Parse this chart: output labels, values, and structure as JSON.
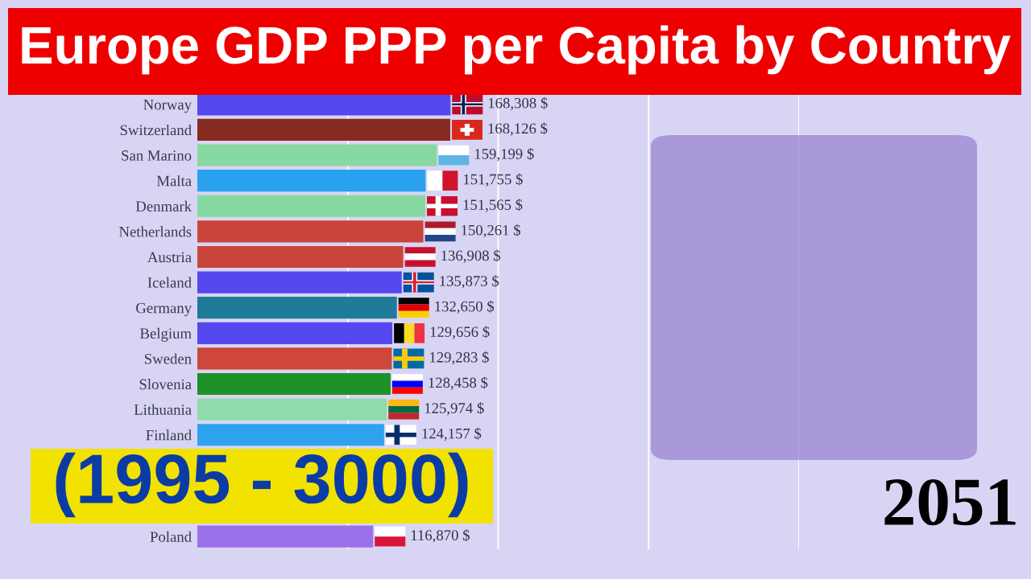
{
  "chart_data": {
    "type": "bar",
    "orientation": "horizontal",
    "title": "Europe GDP PPP per Capita by Country",
    "subtitle": "(1995 - 3000)",
    "annotations": [
      "2051"
    ],
    "categories": [
      "Norway",
      "Switzerland",
      "San Marino",
      "Malta",
      "Denmark",
      "Netherlands",
      "Austria",
      "Iceland",
      "Germany",
      "Belgium",
      "Sweden",
      "Slovenia",
      "Lithuania",
      "Finland",
      null,
      null,
      null,
      "Poland"
    ],
    "values": [
      168308,
      168126,
      159199,
      151755,
      151565,
      150261,
      136908,
      135873,
      132650,
      129656,
      129283,
      128458,
      125974,
      124157,
      null,
      null,
      null,
      116870
    ],
    "colors": [
      "#5548ee",
      "#862a22",
      "#88d8a2",
      "#2aa1ef",
      "#88d8a2",
      "#c9453b",
      "#c9453b",
      "#5548ee",
      "#1f7b97",
      "#5548ee",
      "#cf463b",
      "#1f9129",
      "#8fdba9",
      "#2ea2ee",
      null,
      null,
      null,
      "#9b70e9"
    ],
    "value_labels": [
      "168,308 $",
      "168,126 $",
      "159,199 $",
      "151,755 $",
      "151,565 $",
      "150,261 $",
      "136,908 $",
      "135,873 $",
      "132,650 $",
      "129,656 $",
      "129,283 $",
      "128,458 $",
      "125,974 $",
      "124,157 $",
      null,
      null,
      null,
      "116,870 $"
    ],
    "xlim": [
      0,
      400000
    ],
    "xticks": [
      {
        "value": 100000,
        "label": null
      },
      {
        "value": 200000,
        "label": null
      },
      {
        "value": 300000,
        "label": null
      },
      {
        "value": 400000,
        "label": null
      }
    ],
    "grid": "x",
    "tick_labels": "y"
  }
}
